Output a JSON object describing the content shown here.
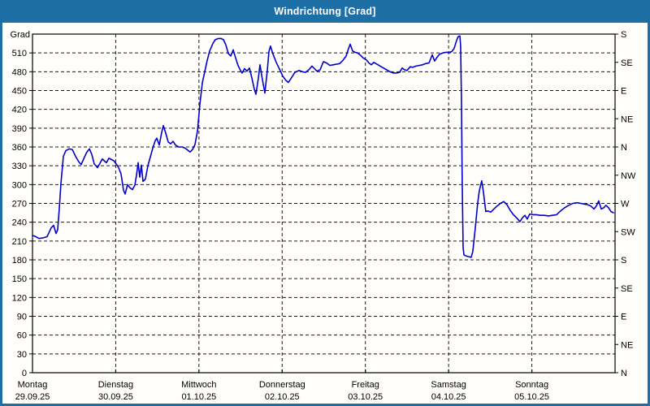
{
  "window": {
    "title": "Windrichtung [Grad]"
  },
  "colors": {
    "accent": "#1d6fa5",
    "title_text": "#ffffff",
    "background": "#fffefa",
    "plot_frame": "#000000",
    "grid": "#1a1a1a",
    "line": "#0000cd",
    "label_text": "#000000"
  },
  "chart_data": {
    "type": "line",
    "title": "Windrichtung [Grad]",
    "ylabel": "Grad",
    "ylim": [
      0,
      540
    ],
    "grid": "dashed",
    "legend": "none",
    "y_ticks_left": [
      0,
      30,
      60,
      90,
      120,
      150,
      180,
      210,
      240,
      270,
      300,
      330,
      360,
      390,
      420,
      450,
      480,
      510
    ],
    "y_ticks_right": [
      {
        "deg": 540,
        "label": "S"
      },
      {
        "deg": 495,
        "label": "SE"
      },
      {
        "deg": 450,
        "label": "E"
      },
      {
        "deg": 405,
        "label": "NE"
      },
      {
        "deg": 360,
        "label": "N"
      },
      {
        "deg": 315,
        "label": "NW"
      },
      {
        "deg": 270,
        "label": "W"
      },
      {
        "deg": 225,
        "label": "SW"
      },
      {
        "deg": 180,
        "label": "S"
      },
      {
        "deg": 135,
        "label": "SE"
      },
      {
        "deg": 90,
        "label": "E"
      },
      {
        "deg": 45,
        "label": "NE"
      },
      {
        "deg": 0,
        "label": "N"
      }
    ],
    "x_axis": {
      "span_days": 7,
      "days": [
        {
          "weekday": "Montag",
          "date": "29.09.25"
        },
        {
          "weekday": "Dienstag",
          "date": "30.09.25"
        },
        {
          "weekday": "Mittwoch",
          "date": "01.10.25"
        },
        {
          "weekday": "Donnerstag",
          "date": "02.10.25"
        },
        {
          "weekday": "Freitag",
          "date": "03.10.25"
        },
        {
          "weekday": "Samstag",
          "date": "04.10.25"
        },
        {
          "weekday": "Sonntag",
          "date": "05.10.25"
        }
      ]
    },
    "series": [
      {
        "name": "Windrichtung",
        "unit": "Grad",
        "points": [
          [
            0.0,
            219
          ],
          [
            0.039,
            217
          ],
          [
            0.078,
            214
          ],
          [
            0.127,
            215
          ],
          [
            0.176,
            217
          ],
          [
            0.225,
            231
          ],
          [
            0.254,
            235
          ],
          [
            0.283,
            222
          ],
          [
            0.303,
            228
          ],
          [
            0.322,
            262
          ],
          [
            0.342,
            302
          ],
          [
            0.371,
            345
          ],
          [
            0.4,
            354
          ],
          [
            0.439,
            357
          ],
          [
            0.478,
            356
          ],
          [
            0.517,
            345
          ],
          [
            0.557,
            336
          ],
          [
            0.586,
            332
          ],
          [
            0.625,
            344
          ],
          [
            0.654,
            352
          ],
          [
            0.684,
            357
          ],
          [
            0.713,
            348
          ],
          [
            0.742,
            333
          ],
          [
            0.781,
            327
          ],
          [
            0.81,
            334
          ],
          [
            0.84,
            341
          ],
          [
            0.869,
            337
          ],
          [
            0.888,
            335
          ],
          [
            0.918,
            342
          ],
          [
            0.947,
            340
          ],
          [
            0.977,
            338
          ],
          [
            1.006,
            333
          ],
          [
            1.035,
            327
          ],
          [
            1.064,
            317
          ],
          [
            1.093,
            291
          ],
          [
            1.113,
            285
          ],
          [
            1.142,
            300
          ],
          [
            1.171,
            295
          ],
          [
            1.201,
            292
          ],
          [
            1.23,
            299
          ],
          [
            1.25,
            315
          ],
          [
            1.269,
            335
          ],
          [
            1.289,
            312
          ],
          [
            1.308,
            331
          ],
          [
            1.328,
            305
          ],
          [
            1.357,
            309
          ],
          [
            1.386,
            330
          ],
          [
            1.416,
            344
          ],
          [
            1.445,
            358
          ],
          [
            1.474,
            370
          ],
          [
            1.494,
            374
          ],
          [
            1.523,
            363
          ],
          [
            1.552,
            383
          ],
          [
            1.572,
            394
          ],
          [
            1.601,
            382
          ],
          [
            1.63,
            368
          ],
          [
            1.66,
            365
          ],
          [
            1.689,
            369
          ],
          [
            1.718,
            363
          ],
          [
            1.757,
            360
          ],
          [
            1.796,
            360
          ],
          [
            1.835,
            358
          ],
          [
            1.865,
            355
          ],
          [
            1.894,
            352
          ],
          [
            1.923,
            356
          ],
          [
            1.953,
            364
          ],
          [
            1.982,
            385
          ],
          [
            2.011,
            428
          ],
          [
            2.04,
            462
          ],
          [
            2.07,
            480
          ],
          [
            2.099,
            498
          ],
          [
            2.128,
            513
          ],
          [
            2.167,
            525
          ],
          [
            2.196,
            531
          ],
          [
            2.236,
            533
          ],
          [
            2.265,
            533
          ],
          [
            2.294,
            531
          ],
          [
            2.323,
            523
          ],
          [
            2.353,
            509
          ],
          [
            2.382,
            505
          ],
          [
            2.411,
            515
          ],
          [
            2.441,
            502
          ],
          [
            2.47,
            490
          ],
          [
            2.499,
            482
          ],
          [
            2.519,
            478
          ],
          [
            2.548,
            485
          ],
          [
            2.577,
            481
          ],
          [
            2.607,
            486
          ],
          [
            2.636,
            470
          ],
          [
            2.665,
            452
          ],
          [
            2.685,
            444
          ],
          [
            2.714,
            470
          ],
          [
            2.734,
            491
          ],
          [
            2.763,
            467
          ],
          [
            2.792,
            446
          ],
          [
            2.821,
            482
          ],
          [
            2.841,
            512
          ],
          [
            2.86,
            521
          ],
          [
            2.89,
            508
          ],
          [
            2.929,
            495
          ],
          [
            2.968,
            484
          ],
          [
            3.007,
            473
          ],
          [
            3.046,
            466
          ],
          [
            3.075,
            463
          ],
          [
            3.114,
            471
          ],
          [
            3.153,
            479
          ],
          [
            3.202,
            482
          ],
          [
            3.241,
            480
          ],
          [
            3.28,
            479
          ],
          [
            3.319,
            483
          ],
          [
            3.358,
            489
          ],
          [
            3.388,
            485
          ],
          [
            3.417,
            481
          ],
          [
            3.456,
            483
          ],
          [
            3.495,
            496
          ],
          [
            3.534,
            494
          ],
          [
            3.573,
            490
          ],
          [
            3.612,
            491
          ],
          [
            3.651,
            492
          ],
          [
            3.69,
            493
          ],
          [
            3.729,
            498
          ],
          [
            3.768,
            505
          ],
          [
            3.798,
            517
          ],
          [
            3.817,
            524
          ],
          [
            3.847,
            513
          ],
          [
            3.876,
            511
          ],
          [
            3.905,
            510
          ],
          [
            3.944,
            506
          ],
          [
            3.973,
            502
          ],
          [
            4.012,
            499
          ],
          [
            4.042,
            494
          ],
          [
            4.071,
            491
          ],
          [
            4.1,
            495
          ],
          [
            4.139,
            492
          ],
          [
            4.178,
            489
          ],
          [
            4.217,
            486
          ],
          [
            4.256,
            483
          ],
          [
            4.295,
            480
          ],
          [
            4.334,
            478
          ],
          [
            4.373,
            478
          ],
          [
            4.412,
            479
          ],
          [
            4.442,
            486
          ],
          [
            4.471,
            483
          ],
          [
            4.5,
            482
          ],
          [
            4.539,
            488
          ],
          [
            4.568,
            487
          ],
          [
            4.607,
            489
          ],
          [
            4.646,
            490
          ],
          [
            4.686,
            491
          ],
          [
            4.725,
            493
          ],
          [
            4.764,
            494
          ],
          [
            4.803,
            507
          ],
          [
            4.832,
            497
          ],
          [
            4.861,
            503
          ],
          [
            4.891,
            508
          ],
          [
            4.93,
            510
          ],
          [
            4.969,
            511
          ],
          [
            5.008,
            511
          ],
          [
            5.037,
            512
          ],
          [
            5.066,
            517
          ],
          [
            5.096,
            530
          ],
          [
            5.115,
            536
          ],
          [
            5.135,
            537
          ],
          [
            5.144,
            522
          ],
          [
            5.154,
            440
          ],
          [
            5.164,
            300
          ],
          [
            5.174,
            200
          ],
          [
            5.184,
            188
          ],
          [
            5.213,
            186
          ],
          [
            5.242,
            185
          ],
          [
            5.271,
            184
          ],
          [
            5.291,
            193
          ],
          [
            5.32,
            230
          ],
          [
            5.349,
            270
          ],
          [
            5.369,
            290
          ],
          [
            5.398,
            306
          ],
          [
            5.418,
            288
          ],
          [
            5.447,
            257
          ],
          [
            5.476,
            258
          ],
          [
            5.505,
            256
          ],
          [
            5.544,
            261
          ],
          [
            5.583,
            266
          ],
          [
            5.623,
            270
          ],
          [
            5.662,
            273
          ],
          [
            5.701,
            268
          ],
          [
            5.74,
            259
          ],
          [
            5.779,
            252
          ],
          [
            5.818,
            247
          ],
          [
            5.857,
            241
          ],
          [
            5.886,
            247
          ],
          [
            5.916,
            251
          ],
          [
            5.945,
            245
          ],
          [
            5.974,
            253
          ],
          [
            6.013,
            252
          ],
          [
            6.052,
            252
          ],
          [
            6.101,
            251
          ],
          [
            6.15,
            251
          ],
          [
            6.199,
            250
          ],
          [
            6.248,
            251
          ],
          [
            6.297,
            252
          ],
          [
            6.345,
            258
          ],
          [
            6.394,
            263
          ],
          [
            6.443,
            267
          ],
          [
            6.492,
            270
          ],
          [
            6.541,
            271
          ],
          [
            6.59,
            270
          ],
          [
            6.629,
            269
          ],
          [
            6.668,
            268
          ],
          [
            6.707,
            266
          ],
          [
            6.746,
            261
          ],
          [
            6.775,
            266
          ],
          [
            6.804,
            274
          ],
          [
            6.834,
            261
          ],
          [
            6.863,
            263
          ],
          [
            6.892,
            267
          ],
          [
            6.922,
            263
          ],
          [
            6.951,
            257
          ],
          [
            6.98,
            255
          ]
        ]
      }
    ]
  }
}
